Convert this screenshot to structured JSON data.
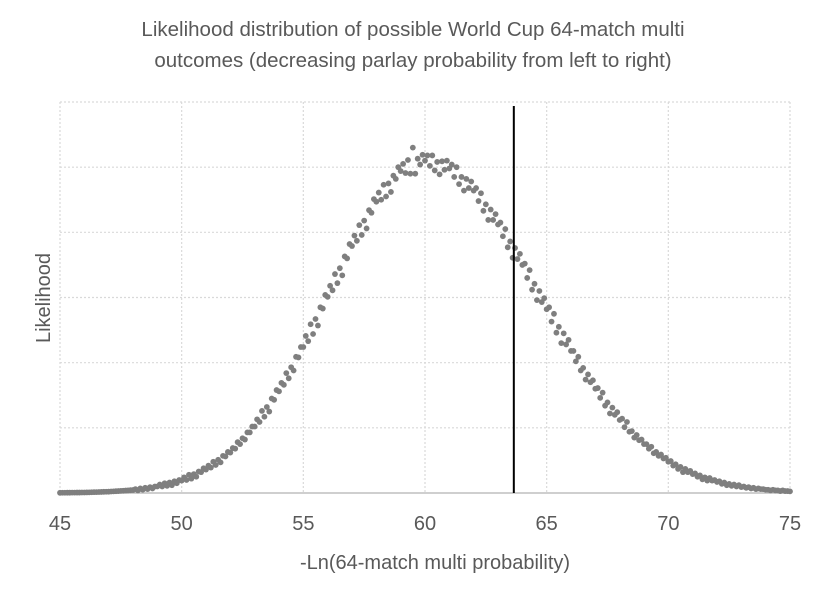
{
  "chart_data": {
    "type": "scatter",
    "title_lines": [
      "Likelihood distribution of possible World Cup 64-match multi",
      "outcomes (decreasing parlay probability from left to right)"
    ],
    "xlabel": "-Ln(64-match multi probability)",
    "ylabel": "Likelihood",
    "xlim": [
      45,
      75
    ],
    "ylim": [
      0,
      6
    ],
    "x_ticks": [
      45,
      50,
      55,
      60,
      65,
      70,
      75
    ],
    "x_tick_labels": [
      "45",
      "50",
      "55",
      "60",
      "65",
      "70",
      "75"
    ],
    "y_gridlines": [
      1,
      2,
      3,
      4,
      5,
      6
    ],
    "y_tick_labels_shown": false,
    "grid": true,
    "legend": "none",
    "colors": {
      "points": "#7f7f7f",
      "marker_line": "#000000",
      "grid": "#d9d9d9",
      "axis": "#bfbfbf",
      "text": "#595959"
    },
    "vertical_marker": {
      "x": 63.65,
      "label": ""
    },
    "series": [
      {
        "name": "Likelihood",
        "x_start": 45,
        "x_step": 0.1,
        "values": [
          0.003,
          0.004,
          0.004,
          0.005,
          0.005,
          0.006,
          0.006,
          0.007,
          0.007,
          0.008,
          0.008,
          0.009,
          0.01,
          0.012,
          0.013,
          0.014,
          0.015,
          0.016,
          0.018,
          0.019,
          0.02,
          0.023,
          0.025,
          0.028,
          0.03,
          0.033,
          0.035,
          0.038,
          0.04,
          0.043,
          0.045,
          0.06,
          0.04,
          0.07,
          0.05,
          0.08,
          0.06,
          0.09,
          0.07,
          0.1,
          0.1,
          0.13,
          0.1,
          0.15,
          0.11,
          0.16,
          0.12,
          0.18,
          0.15,
          0.2,
          0.19,
          0.24,
          0.2,
          0.28,
          0.22,
          0.29,
          0.25,
          0.33,
          0.32,
          0.38,
          0.36,
          0.42,
          0.39,
          0.48,
          0.43,
          0.51,
          0.47,
          0.57,
          0.56,
          0.63,
          0.62,
          0.69,
          0.68,
          0.78,
          0.75,
          0.84,
          0.82,
          0.93,
          0.93,
          1.02,
          1.02,
          1.13,
          1.09,
          1.26,
          1.17,
          1.32,
          1.25,
          1.45,
          1.43,
          1.58,
          1.56,
          1.69,
          1.66,
          1.84,
          1.76,
          1.93,
          1.88,
          2.09,
          2.08,
          2.24,
          2.24,
          2.41,
          2.33,
          2.59,
          2.44,
          2.67,
          2.57,
          2.85,
          2.83,
          3.04,
          3.01,
          3.18,
          3.11,
          3.36,
          3.22,
          3.45,
          3.34,
          3.63,
          3.6,
          3.82,
          3.79,
          3.95,
          3.87,
          4.11,
          3.96,
          4.18,
          4.06,
          4.34,
          4.3,
          4.51,
          4.47,
          4.61,
          4.5,
          4.73,
          4.55,
          4.75,
          4.62,
          4.87,
          4.82,
          5.0,
          4.94,
          5.05,
          4.91,
          5.11,
          4.9,
          5.3,
          4.9,
          5.13,
          5.04,
          5.19,
          5.1,
          5.18,
          5.02,
          5.18,
          4.95,
          5.08,
          4.89,
          5.09,
          4.96,
          5.1,
          4.98,
          5.04,
          4.85,
          5.0,
          4.74,
          4.85,
          4.64,
          4.82,
          4.68,
          4.78,
          4.64,
          4.68,
          4.48,
          4.6,
          4.33,
          4.43,
          4.19,
          4.35,
          4.19,
          4.28,
          4.12,
          4.15,
          3.94,
          4.05,
          3.77,
          3.86,
          3.61,
          3.76,
          3.59,
          3.67,
          3.5,
          3.52,
          3.3,
          3.42,
          3.12,
          3.21,
          2.96,
          3.1,
          2.93,
          2.99,
          2.82,
          2.85,
          2.63,
          2.75,
          2.46,
          2.55,
          2.3,
          2.45,
          2.28,
          2.35,
          2.18,
          2.18,
          2.02,
          2.09,
          1.88,
          1.92,
          1.74,
          1.82,
          1.7,
          1.73,
          1.6,
          1.61,
          1.46,
          1.54,
          1.34,
          1.39,
          1.22,
          1.31,
          1.2,
          1.24,
          1.12,
          1.14,
          1.01,
          1.09,
          0.94,
          0.95,
          0.85,
          0.89,
          0.81,
          0.82,
          0.75,
          0.75,
          0.68,
          0.71,
          0.61,
          0.63,
          0.57,
          0.59,
          0.53,
          0.54,
          0.48,
          0.49,
          0.42,
          0.44,
          0.37,
          0.4,
          0.32,
          0.37,
          0.32,
          0.34,
          0.29,
          0.3,
          0.25,
          0.27,
          0.21,
          0.24,
          0.19,
          0.23,
          0.19,
          0.2,
          0.17,
          0.18,
          0.14,
          0.16,
          0.12,
          0.14,
          0.11,
          0.13,
          0.1,
          0.12,
          0.09,
          0.1,
          0.08,
          0.09,
          0.07,
          0.08,
          0.06,
          0.07,
          0.06,
          0.06,
          0.05,
          0.05,
          0.04,
          0.05,
          0.04,
          0.04,
          0.03,
          0.04,
          0.03,
          0.03,
          0.025
        ]
      }
    ]
  }
}
